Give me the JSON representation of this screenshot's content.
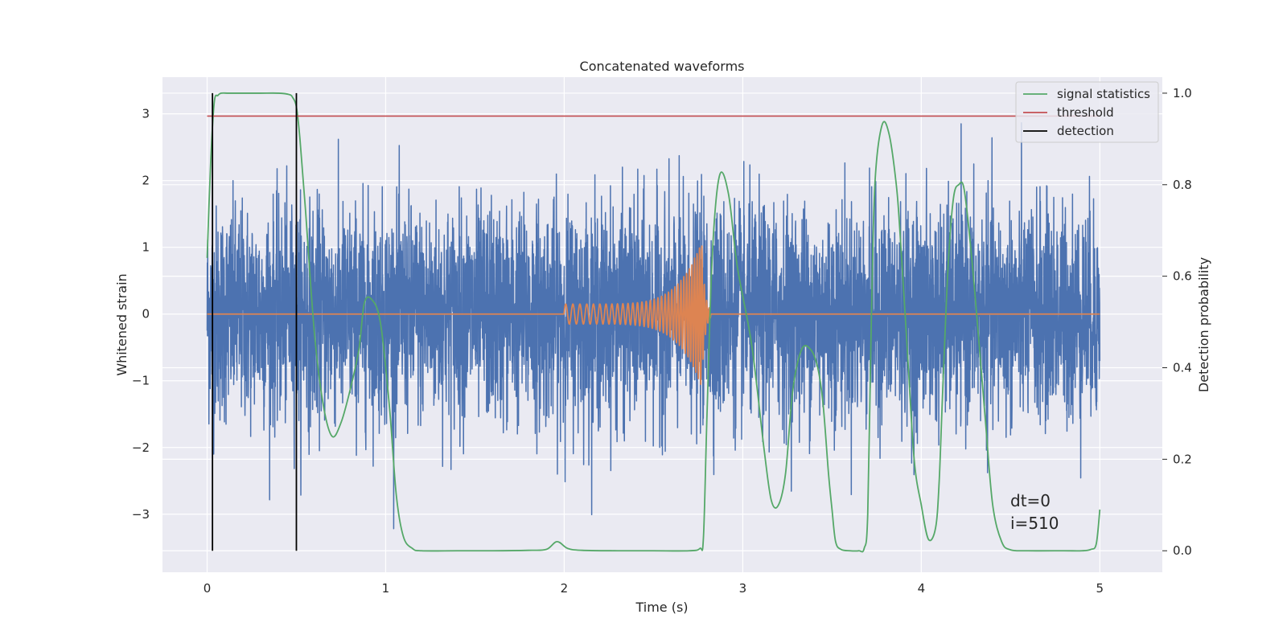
{
  "chart_data": {
    "type": "line",
    "title": "Concatenated waveforms",
    "xlabel": "Time (s)",
    "ylabel_left": "Whitened strain",
    "ylabel_right": "Detection probability",
    "xlim": [
      -0.25,
      5.35
    ],
    "ylim_left": [
      -3.87,
      3.55
    ],
    "ylim_right": [
      -0.047,
      1.035
    ],
    "x_ticks": [
      0,
      1,
      2,
      3,
      4,
      5
    ],
    "x_tick_labels": [
      "0",
      "1",
      "2",
      "3",
      "4",
      "5"
    ],
    "y_left_ticks": [
      -3,
      -2,
      -1,
      0,
      1,
      2,
      3
    ],
    "y_left_tick_labels": [
      "−3",
      "−2",
      "−1",
      "0",
      "1",
      "2",
      "3"
    ],
    "y_right_ticks": [
      0.0,
      0.2,
      0.4,
      0.6,
      0.8,
      1.0
    ],
    "y_right_tick_labels": [
      "0.0",
      "0.2",
      "0.4",
      "0.6",
      "0.8",
      "1.0"
    ],
    "grid": true,
    "legend_position": "upper right",
    "series": [
      {
        "key": "strain_noise",
        "axis": "left",
        "color": "#4c72b0",
        "x_range": [
          0,
          5
        ],
        "typical_amplitude": 0.8,
        "peak_amplitude": 3.4
      },
      {
        "key": "chirp",
        "axis": "left",
        "color": "#dd8452",
        "x_range": [
          0,
          5
        ],
        "chirp_start": 2.0,
        "chirp_merger": 2.77,
        "chirp_start_amplitude": 0.15,
        "chirp_peak_amplitude": 1.1,
        "chirp_start_freq": 25,
        "chirp_end_freq": 75
      },
      {
        "name": "signal statistics",
        "axis": "right",
        "color": "#55a868",
        "x": [
          0.0,
          0.02,
          0.04,
          0.06,
          0.08,
          0.12,
          0.2,
          0.3,
          0.4,
          0.46,
          0.48,
          0.5,
          0.52,
          0.55,
          0.6,
          0.65,
          0.7,
          0.75,
          0.8,
          0.85,
          0.88,
          0.92,
          0.97,
          1.02,
          1.06,
          1.1,
          1.15,
          1.2,
          1.4,
          1.6,
          1.8,
          1.9,
          1.96,
          2.02,
          2.1,
          2.3,
          2.5,
          2.7,
          2.76,
          2.78,
          2.8,
          2.83,
          2.87,
          2.92,
          2.97,
          3.05,
          3.12,
          3.16,
          3.2,
          3.24,
          3.28,
          3.33,
          3.38,
          3.42,
          3.45,
          3.48,
          3.5,
          3.52,
          3.55,
          3.6,
          3.65,
          3.68,
          3.7,
          3.72,
          3.74,
          3.78,
          3.82,
          3.86,
          3.88,
          3.92,
          3.96,
          4.0,
          4.04,
          4.08,
          4.1,
          4.12,
          4.15,
          4.18,
          4.21,
          4.24,
          4.28,
          4.32,
          4.36,
          4.4,
          4.45,
          4.5,
          4.6,
          4.8,
          4.9,
          4.95,
          4.98,
          5.0
        ],
        "y": [
          0.64,
          0.85,
          0.98,
          0.995,
          1.0,
          1.0,
          1.0,
          1.0,
          1.0,
          0.997,
          0.99,
          0.97,
          0.9,
          0.75,
          0.48,
          0.32,
          0.25,
          0.28,
          0.35,
          0.44,
          0.54,
          0.55,
          0.5,
          0.32,
          0.12,
          0.03,
          0.005,
          0.0,
          0.0,
          0.0,
          0.001,
          0.003,
          0.02,
          0.005,
          0.001,
          0.0,
          0.0,
          0.0,
          0.005,
          0.03,
          0.3,
          0.65,
          0.82,
          0.78,
          0.62,
          0.45,
          0.22,
          0.11,
          0.1,
          0.17,
          0.35,
          0.44,
          0.44,
          0.4,
          0.32,
          0.17,
          0.09,
          0.02,
          0.003,
          0.0,
          0.0,
          0.005,
          0.08,
          0.5,
          0.8,
          0.93,
          0.91,
          0.8,
          0.7,
          0.45,
          0.2,
          0.1,
          0.025,
          0.05,
          0.15,
          0.35,
          0.62,
          0.77,
          0.8,
          0.79,
          0.65,
          0.47,
          0.28,
          0.1,
          0.02,
          0.002,
          0.0,
          0.0,
          0.0,
          0.003,
          0.015,
          0.09
        ]
      },
      {
        "name": "threshold",
        "axis": "right",
        "color": "#c44e52",
        "x": [
          0,
          5
        ],
        "y": [
          0.95,
          0.95
        ]
      },
      {
        "name": "detection",
        "axis": "right",
        "color": "#000000",
        "vlines": [
          0.03,
          0.5
        ],
        "y_range": [
          0.0,
          1.0
        ]
      }
    ],
    "annotations": [
      "dt=0",
      "i=510"
    ]
  }
}
